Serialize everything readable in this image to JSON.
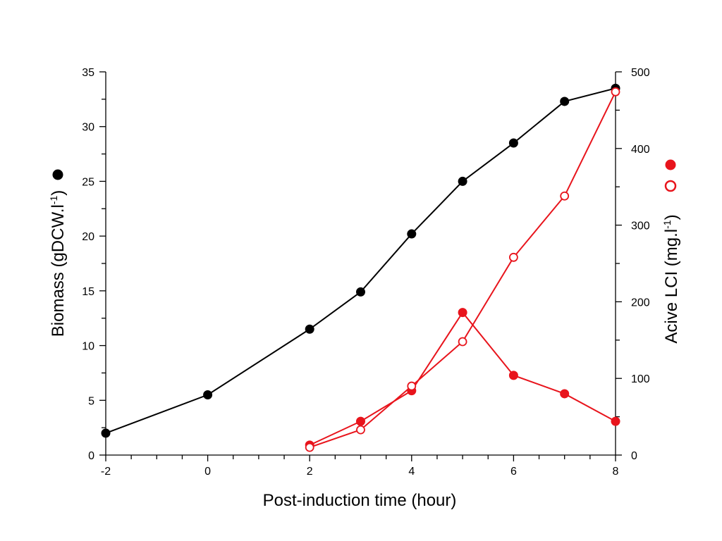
{
  "chart_data": {
    "type": "line",
    "xlabel": "Post-induction time (hour)",
    "ylabel_left": {
      "text": "Biomass (gDCW.l",
      "sup": "-1",
      "tail": ")"
    },
    "ylabel_right": {
      "text": "Acive LCI (mg.l",
      "sup": "-1",
      "tail": ")"
    },
    "xlim": [
      -2,
      8
    ],
    "ylim_left": [
      0,
      35
    ],
    "ylim_right": [
      0,
      500
    ],
    "x_ticks": [
      -2,
      0,
      2,
      4,
      6,
      8
    ],
    "y_ticks_left": [
      0,
      5,
      10,
      15,
      20,
      25,
      30,
      35
    ],
    "y_ticks_right": [
      0,
      100,
      200,
      300,
      400,
      500
    ],
    "grid": false,
    "series": [
      {
        "axis": "left",
        "marker": "filled-circle",
        "color": "#000000",
        "x": [
          -2,
          0,
          2,
          3,
          4,
          5,
          6,
          7,
          8
        ],
        "y": [
          2.0,
          5.5,
          11.5,
          14.9,
          20.2,
          25.0,
          28.5,
          32.3,
          33.5
        ]
      },
      {
        "axis": "right",
        "marker": "filled-circle",
        "color": "#e8141c",
        "x": [
          2,
          3,
          4,
          5,
          6,
          7,
          8
        ],
        "y": [
          13,
          44,
          84,
          186,
          104,
          80,
          44
        ]
      },
      {
        "axis": "right",
        "marker": "open-circle",
        "color": "#e8141c",
        "x": [
          2,
          3,
          4,
          5,
          6,
          7,
          8
        ],
        "y": [
          10,
          33,
          90,
          148,
          258,
          338,
          474
        ]
      }
    ]
  }
}
